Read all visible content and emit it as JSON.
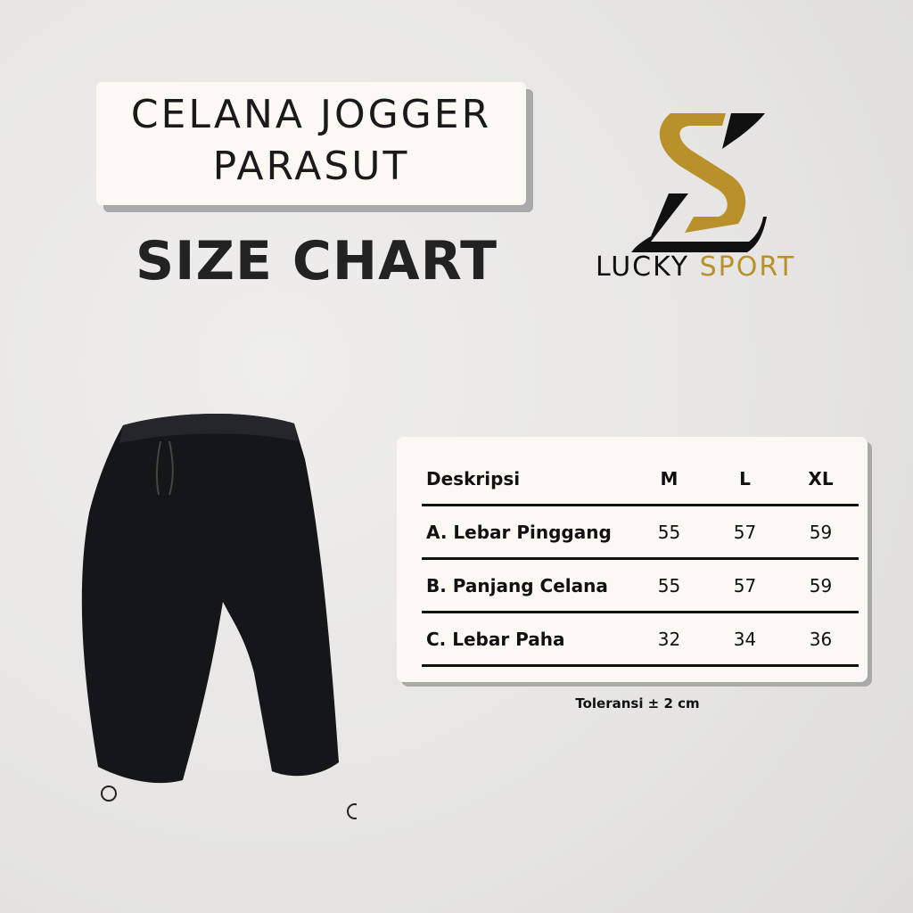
{
  "title": {
    "line1": "CELANA JOGGER",
    "line2": "PARASUT"
  },
  "subtitle": "SIZE CHART",
  "brand": {
    "word1": "LUCKY",
    "word2": "SPORT",
    "gold": "#b8912a",
    "black": "#111111"
  },
  "table": {
    "headers": [
      "Deskripsi",
      "M",
      "L",
      "XL"
    ],
    "rows": [
      {
        "label": "A. Lebar Pinggang",
        "values": [
          "55",
          "57",
          "59"
        ]
      },
      {
        "label": "B. Panjang Celana",
        "values": [
          "55",
          "57",
          "59"
        ]
      },
      {
        "label": "C. Lebar Paha",
        "values": [
          "32",
          "34",
          "36"
        ]
      }
    ]
  },
  "tolerance": "Toleransi ± 2 cm"
}
